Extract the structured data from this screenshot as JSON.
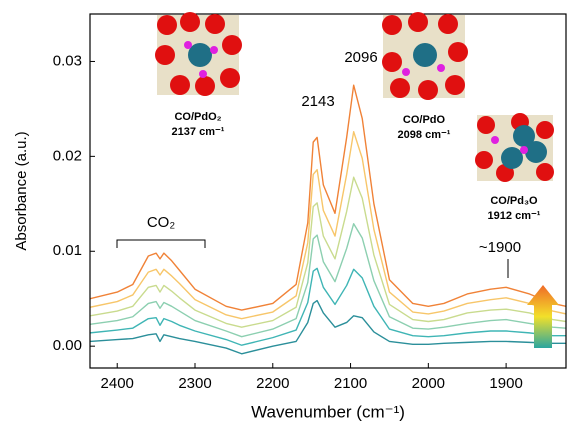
{
  "chart_data": {
    "type": "line",
    "x_label": "Wavenumber (cm⁻¹)",
    "y_label": "Absorbance (a.u.)",
    "xlim": [
      2435,
      1823
    ],
    "ylim": [
      -0.0023,
      0.035
    ],
    "xticks": [
      2400,
      2300,
      2200,
      2100,
      2000,
      1900
    ],
    "yticks": [
      {
        "value": 0,
        "label": "0.00"
      },
      0.01,
      0.02,
      0.03
    ],
    "annotations": [
      "2143",
      "2096",
      "~1900",
      "CO₂"
    ],
    "insets": [
      {
        "label": "CO/PdO₂",
        "frequency": "2137 cm⁻¹"
      },
      {
        "label": "CO/PdO",
        "frequency": "2098 cm⁻¹"
      },
      {
        "label": "CO/Pd₃O",
        "frequency": "1912 cm⁻¹"
      }
    ],
    "x": [
      2435,
      2400,
      2380,
      2370,
      2360,
      2350,
      2345,
      2340,
      2330,
      2320,
      2300,
      2260,
      2240,
      2200,
      2170,
      2155,
      2148,
      2143,
      2135,
      2120,
      2105,
      2096,
      2085,
      2070,
      2050,
      2020,
      2000,
      1980,
      1950,
      1920,
      1900,
      1870,
      1840,
      1823
    ],
    "series": [
      {
        "color": "#2b8f9a",
        "values": [
          0.0005,
          0.0007,
          0.0008,
          0.001,
          0.0012,
          0.0013,
          0.0005,
          0.0012,
          0.001,
          0.0008,
          0.0005,
          -0.0002,
          -0.0008,
          0,
          0.0005,
          0.0025,
          0.0045,
          0.0048,
          0.0035,
          0.002,
          0.0025,
          0.0032,
          0.003,
          0.0015,
          0.0005,
          0.0002,
          0.0002,
          0.0003,
          0.0004,
          0.0005,
          0.0005,
          0.0004,
          0.0003,
          0.0003
        ]
      },
      {
        "color": "#3fb5b5",
        "values": [
          0.0014,
          0.0017,
          0.0019,
          0.0024,
          0.0029,
          0.003,
          0.0022,
          0.0029,
          0.0026,
          0.0022,
          0.0016,
          0.0007,
          0.0001,
          0.0009,
          0.0017,
          0.0046,
          0.0079,
          0.0082,
          0.0062,
          0.0044,
          0.0064,
          0.0081,
          0.0072,
          0.0042,
          0.0018,
          0.0011,
          0.001,
          0.0011,
          0.0014,
          0.0016,
          0.0016,
          0.0014,
          0.0011,
          0.0011
        ]
      },
      {
        "color": "#8ccfb0",
        "values": [
          0.0023,
          0.0027,
          0.0031,
          0.0038,
          0.0045,
          0.0047,
          0.004,
          0.0046,
          0.0042,
          0.0037,
          0.0027,
          0.0016,
          0.001,
          0.0018,
          0.0029,
          0.0067,
          0.0113,
          0.0117,
          0.0089,
          0.0068,
          0.0103,
          0.0129,
          0.0114,
          0.0069,
          0.0031,
          0.0019,
          0.0018,
          0.002,
          0.0024,
          0.0027,
          0.0028,
          0.0024,
          0.002,
          0.0019
        ]
      },
      {
        "color": "#c9db8e",
        "values": [
          0.0032,
          0.0037,
          0.0042,
          0.0052,
          0.0062,
          0.0064,
          0.0057,
          0.0064,
          0.0058,
          0.0051,
          0.0038,
          0.0024,
          0.002,
          0.0027,
          0.0041,
          0.0088,
          0.0147,
          0.0151,
          0.0116,
          0.0092,
          0.0142,
          0.0178,
          0.0156,
          0.0096,
          0.0044,
          0.0028,
          0.0026,
          0.0028,
          0.0035,
          0.0038,
          0.0039,
          0.0035,
          0.0028,
          0.0026
        ]
      },
      {
        "color": "#f7c66a",
        "values": [
          0.0041,
          0.0047,
          0.0054,
          0.0066,
          0.0078,
          0.0081,
          0.0075,
          0.0081,
          0.0074,
          0.0066,
          0.0049,
          0.0033,
          0.0029,
          0.0036,
          0.0053,
          0.0109,
          0.0181,
          0.0186,
          0.0143,
          0.0116,
          0.0181,
          0.0226,
          0.0198,
          0.0123,
          0.0057,
          0.0036,
          0.0034,
          0.0037,
          0.0045,
          0.0049,
          0.0051,
          0.0045,
          0.0037,
          0.0034
        ]
      },
      {
        "color": "#f08237",
        "values": [
          0.005,
          0.0057,
          0.0065,
          0.008,
          0.0095,
          0.0098,
          0.0092,
          0.0098,
          0.009,
          0.008,
          0.006,
          0.0042,
          0.0038,
          0.0045,
          0.0065,
          0.013,
          0.0215,
          0.022,
          0.017,
          0.014,
          0.022,
          0.0275,
          0.024,
          0.015,
          0.007,
          0.0045,
          0.0042,
          0.0045,
          0.0055,
          0.006,
          0.0062,
          0.0055,
          0.0045,
          0.0042
        ]
      }
    ]
  }
}
